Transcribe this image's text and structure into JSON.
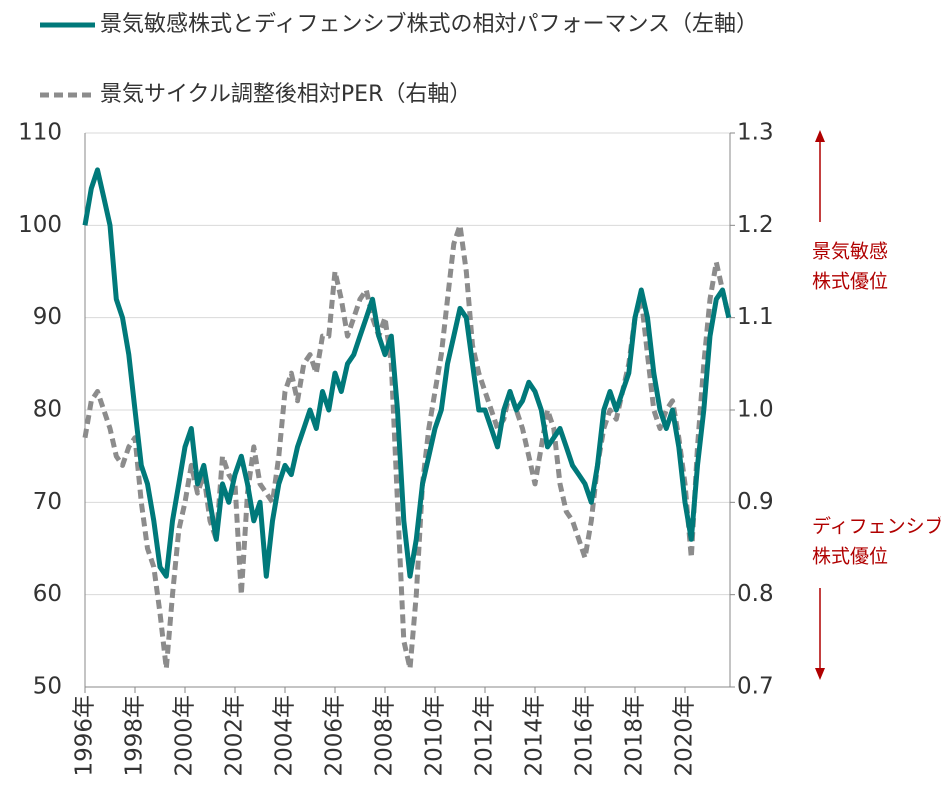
{
  "chart_data": {
    "type": "line",
    "legend": "top",
    "annotations": [
      {
        "lines": [
          "景気敏感",
          "株式優位"
        ],
        "direction": "up"
      },
      {
        "lines": [
          "ディフェンシブ",
          "株式優位"
        ],
        "direction": "down"
      }
    ],
    "annotation_color": "#b00000",
    "x": [
      1996,
      1996.25,
      1996.5,
      1996.75,
      1997,
      1997.25,
      1997.5,
      1997.75,
      1998,
      1998.25,
      1998.5,
      1998.75,
      1999,
      1999.25,
      1999.5,
      1999.75,
      2000,
      2000.25,
      2000.5,
      2000.75,
      2001,
      2001.25,
      2001.5,
      2001.75,
      2002,
      2002.25,
      2002.5,
      2002.75,
      2003,
      2003.25,
      2003.5,
      2003.75,
      2004,
      2004.25,
      2004.5,
      2004.75,
      2005,
      2005.25,
      2005.5,
      2005.75,
      2006,
      2006.25,
      2006.5,
      2006.75,
      2007,
      2007.25,
      2007.5,
      2007.75,
      2008,
      2008.25,
      2008.5,
      2008.75,
      2009,
      2009.25,
      2009.5,
      2009.75,
      2010,
      2010.25,
      2010.5,
      2010.75,
      2011,
      2011.25,
      2011.5,
      2011.75,
      2012,
      2012.25,
      2012.5,
      2012.75,
      2013,
      2013.25,
      2013.5,
      2013.75,
      2014,
      2014.25,
      2014.5,
      2014.75,
      2015,
      2015.25,
      2015.5,
      2015.75,
      2016,
      2016.25,
      2016.5,
      2016.75,
      2017,
      2017.25,
      2017.5,
      2017.75,
      2018,
      2018.25,
      2018.5,
      2018.75,
      2019,
      2019.25,
      2019.5,
      2019.75,
      2020,
      2020.25,
      2020.5,
      2020.75,
      2021,
      2021.25,
      2021.5,
      2021.75
    ],
    "series": [
      {
        "name": "景気敏感株式とディフェンシブ株式の相対パフォーマンス（左軸）",
        "color": "#00797a",
        "dashed": false,
        "values": [
          100,
          104,
          106,
          103,
          100,
          92,
          90,
          86,
          80,
          74,
          72,
          68,
          63,
          62,
          68,
          72,
          76,
          78,
          72,
          74,
          70,
          66,
          72,
          70,
          73,
          75,
          72,
          68,
          70,
          62,
          68,
          72,
          74,
          73,
          76,
          78,
          80,
          78,
          82,
          80,
          84,
          82,
          85,
          86,
          88,
          90,
          92,
          88,
          86,
          88,
          80,
          68,
          62,
          66,
          72,
          75,
          78,
          80,
          85,
          88,
          91,
          90,
          85,
          80,
          80,
          78,
          76,
          80,
          82,
          80,
          81,
          83,
          82,
          80,
          76,
          77,
          78,
          76,
          74,
          73,
          72,
          70,
          74,
          80,
          82,
          80,
          82,
          84,
          90,
          93,
          90,
          84,
          80,
          78,
          80,
          76,
          70,
          66,
          74,
          80,
          88,
          92,
          93,
          90
        ]
      },
      {
        "name": "景気サイクル調整後相対PER（右軸）",
        "color": "#8c8c8c",
        "dashed": true,
        "axis": "y2",
        "values": [
          0.97,
          1.01,
          1.02,
          1.0,
          0.98,
          0.95,
          0.94,
          0.96,
          0.97,
          0.9,
          0.85,
          0.83,
          0.78,
          0.72,
          0.8,
          0.87,
          0.9,
          0.94,
          0.91,
          0.93,
          0.88,
          0.86,
          0.95,
          0.93,
          0.92,
          0.8,
          0.91,
          0.96,
          0.92,
          0.91,
          0.9,
          0.95,
          1.02,
          1.04,
          1.01,
          1.05,
          1.06,
          1.04,
          1.08,
          1.08,
          1.15,
          1.12,
          1.08,
          1.1,
          1.12,
          1.13,
          1.1,
          1.08,
          1.1,
          1.05,
          0.9,
          0.75,
          0.72,
          0.8,
          0.92,
          0.98,
          1.02,
          1.06,
          1.12,
          1.18,
          1.2,
          1.15,
          1.07,
          1.04,
          1.02,
          1.0,
          0.98,
          0.99,
          1.02,
          1.0,
          0.98,
          0.95,
          0.92,
          0.96,
          1.0,
          0.98,
          0.92,
          0.89,
          0.88,
          0.86,
          0.84,
          0.88,
          0.94,
          0.98,
          1.0,
          0.99,
          1.02,
          1.05,
          1.1,
          1.12,
          1.06,
          1.0,
          0.98,
          1.0,
          1.01,
          0.97,
          0.92,
          0.84,
          0.96,
          1.05,
          1.12,
          1.16,
          1.13,
          1.1
        ]
      }
    ],
    "xlim": [
      1996,
      2021.8
    ],
    "xticks": [
      {
        "value": 1996,
        "label": "1996年"
      },
      {
        "value": 1998,
        "label": "1998年"
      },
      {
        "value": 2000,
        "label": "2000年"
      },
      {
        "value": 2002,
        "label": "2002年"
      },
      {
        "value": 2004,
        "label": "2004年"
      },
      {
        "value": 2006,
        "label": "2006年"
      },
      {
        "value": 2008,
        "label": "2008年"
      },
      {
        "value": 2010,
        "label": "2010年"
      },
      {
        "value": 2012,
        "label": "2012年"
      },
      {
        "value": 2014,
        "label": "2014年"
      },
      {
        "value": 2016,
        "label": "2016年"
      },
      {
        "value": 2018,
        "label": "2018年"
      },
      {
        "value": 2020,
        "label": "2020年"
      }
    ],
    "ylim": [
      50,
      110
    ],
    "yticks": [
      50,
      60,
      70,
      80,
      90,
      100,
      110
    ],
    "y2lim": [
      0.7,
      1.3
    ],
    "y2ticks": [
      0.7,
      0.8,
      0.9,
      {
        "value": 1,
        "label": "1.0"
      },
      1.1,
      1.2,
      1.3
    ],
    "grid": true
  }
}
